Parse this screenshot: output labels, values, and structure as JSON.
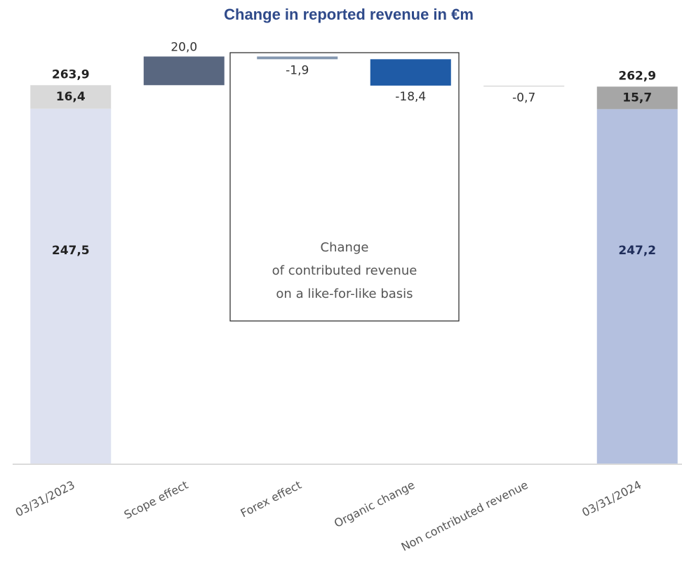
{
  "chart_data": {
    "type": "waterfall",
    "title": "Change in reported revenue in €m",
    "categories": [
      "03/31/2023",
      "Scope effect",
      "Forex effect",
      "Organic change",
      "Non contributed revenue",
      "03/31/2024"
    ],
    "values": [
      null,
      20.0,
      -1.9,
      -18.4,
      -0.7,
      null
    ],
    "value_labels": [
      null,
      "20,0",
      "-1,9",
      "-18,4",
      "-0,7",
      null
    ],
    "colors": [
      null,
      "#596780",
      "#8497b0",
      "#1f5ba6",
      "#d9d9d9",
      null
    ],
    "base_values": [
      247.5,
      null,
      null,
      null,
      null,
      247.2
    ],
    "base_labels": [
      "247,5",
      null,
      null,
      null,
      null,
      "247,2"
    ],
    "base_colors": [
      "#dde1f0",
      null,
      null,
      null,
      null,
      "#b4c0df"
    ],
    "top_values": [
      16.4,
      null,
      null,
      null,
      null,
      15.7
    ],
    "top_labels": [
      "16,4",
      null,
      null,
      null,
      null,
      "15,7"
    ],
    "top_colors": [
      "#d9d9d9",
      null,
      null,
      null,
      null,
      "#a6a6a6"
    ],
    "totals": [
      263.9,
      null,
      null,
      null,
      null,
      262.9
    ],
    "total_labels": [
      "263,9",
      null,
      null,
      null,
      null,
      "262,9"
    ],
    "annotation": [
      "Change",
      "of contributed revenue",
      "on a like-for-like basis"
    ],
    "ylim": [
      0,
      290
    ]
  }
}
